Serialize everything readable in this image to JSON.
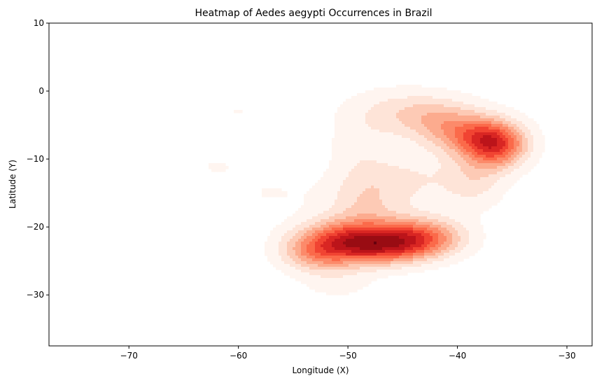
{
  "chart_data": {
    "type": "heatmap",
    "subtype": "kde-density",
    "title": "Heatmap of Aedes aegypti Occurrences in Brazil",
    "xlabel": "Longitude (X)",
    "ylabel": "Latitude (Y)",
    "xlim": [
      -77.3,
      -27.7
    ],
    "ylim": [
      -37.5,
      10
    ],
    "xticks": [
      -70,
      -60,
      -50,
      -40,
      -30
    ],
    "yticks": [
      10,
      0,
      -10,
      -20,
      -30
    ],
    "colormap": "Reds",
    "grid": false,
    "legend": "none",
    "density_blobs": [
      {
        "x": -50.0,
        "y": -22.0,
        "sx": 3.2,
        "sy": 2.2,
        "w": 1.0
      },
      {
        "x": -43.5,
        "y": -21.5,
        "sx": 2.8,
        "sy": 2.0,
        "w": 0.85
      },
      {
        "x": -46.5,
        "y": -23.0,
        "sx": 3.0,
        "sy": 1.8,
        "w": 0.6
      },
      {
        "x": -53.0,
        "y": -24.0,
        "sx": 2.2,
        "sy": 1.8,
        "w": 0.45
      },
      {
        "x": -36.5,
        "y": -8.0,
        "sx": 2.0,
        "sy": 2.3,
        "w": 1.0
      },
      {
        "x": -39.0,
        "y": -6.5,
        "sx": 2.6,
        "sy": 2.0,
        "w": 0.55
      },
      {
        "x": -41.5,
        "y": -4.0,
        "sx": 3.0,
        "sy": 2.2,
        "w": 0.35
      },
      {
        "x": -45.5,
        "y": -3.0,
        "sx": 3.5,
        "sy": 2.5,
        "w": 0.25
      },
      {
        "x": -48.5,
        "y": -16.0,
        "sx": 2.5,
        "sy": 3.5,
        "w": 0.35
      },
      {
        "x": -44.0,
        "y": -13.0,
        "sx": 3.0,
        "sy": 3.0,
        "w": 0.22
      },
      {
        "x": -38.5,
        "y": -13.0,
        "sx": 2.0,
        "sy": 3.0,
        "w": 0.3
      },
      {
        "x": -51.0,
        "y": -28.0,
        "sx": 2.5,
        "sy": 2.0,
        "w": 0.15
      },
      {
        "x": -57.0,
        "y": -15.0,
        "sx": 3.0,
        "sy": 2.0,
        "w": 0.1
      },
      {
        "x": -62.0,
        "y": -11.0,
        "sx": 2.2,
        "sy": 1.8,
        "w": 0.1
      },
      {
        "x": -60.0,
        "y": -3.0,
        "sx": 1.6,
        "sy": 1.4,
        "w": 0.1
      },
      {
        "x": -49.0,
        "y": -8.0,
        "sx": 2.0,
        "sy": 3.0,
        "w": 0.15
      }
    ]
  }
}
